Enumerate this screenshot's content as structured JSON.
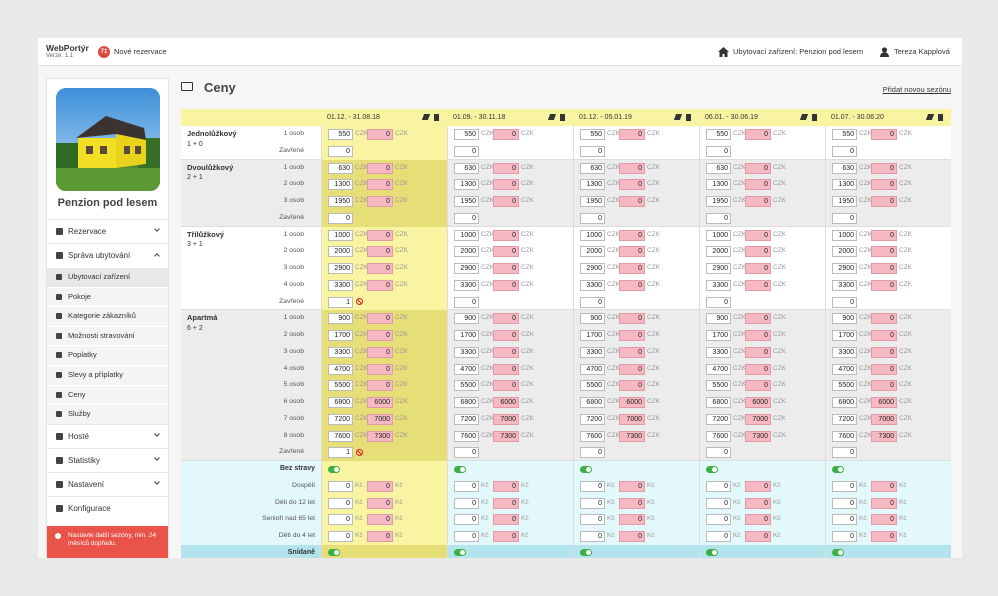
{
  "header": {
    "app_name": "WebPortýr",
    "version": "Verze: 1.1",
    "badge": "71",
    "new_reservations": "Nové rezervace",
    "facility": "Ubytovací zařízení: Penzion pod lesem",
    "user": "Tereza Kapplová"
  },
  "sidebar": {
    "property_name": "Penzion pod lesem",
    "menu": [
      {
        "label": "Rezervace",
        "chevron": "down"
      },
      {
        "label": "Správa ubytování",
        "chevron": "up",
        "items": [
          "Ubytovací zařízení",
          "Pokoje",
          "Kategorie zákazníků",
          "Možnosti stravování",
          "Poplatky",
          "Slevy a příplatky",
          "Ceny",
          "Služby"
        ],
        "active_item": 0
      },
      {
        "label": "Hosté",
        "chevron": "down"
      },
      {
        "label": "Statistiky",
        "chevron": "down"
      },
      {
        "label": "Nastavení",
        "chevron": "down"
      },
      {
        "label": "Konfigurace"
      }
    ],
    "alert": "Nastavte další sezóny, min. 24 měsíců dopředu."
  },
  "page": {
    "title": "Ceny",
    "add_season": "Přidat novou sezónu"
  },
  "table": {
    "currency": "CZK",
    "meal_currency": "Kč",
    "closed_label": "Zavřené",
    "highlighted_season": 0,
    "room_types": [
      {
        "name": "Jednolůžkový",
        "capacity": "1 + 0",
        "rows": [
          "1 osob"
        ]
      },
      {
        "name": "Dvoulůžkový",
        "capacity": "2 + 1",
        "rows": [
          "1 osob",
          "2 osob",
          "3 osob"
        ]
      },
      {
        "name": "Třílůžkový",
        "capacity": "3 + 1",
        "rows": [
          "1 osob",
          "2 osob",
          "3 osob",
          "4 osob"
        ]
      },
      {
        "name": "Apartmá",
        "capacity": "6 + 2",
        "rows": [
          "1 osob",
          "2 osob",
          "3 osob",
          "4 osob",
          "5 osob",
          "6 osob",
          "7 osob",
          "8 osob"
        ]
      }
    ],
    "meal_plans": [
      {
        "name": "Bez stravy",
        "rows": [
          "Dospělí",
          "Děti do 12 let",
          "Senioři nad 65 let",
          "Děti do 4 let"
        ]
      },
      {
        "name": "Snídaně",
        "rows": []
      }
    ],
    "seasons": [
      {
        "label": "01.12. - 31.08.18",
        "rooms": [
          {
            "prices": [
              [
                550,
                0
              ]
            ],
            "closed": 0
          },
          {
            "prices": [
              [
                630,
                0
              ],
              [
                1300,
                0
              ],
              [
                1950,
                0
              ]
            ],
            "closed": 0
          },
          {
            "prices": [
              [
                1000,
                0
              ],
              [
                2000,
                0
              ],
              [
                2900,
                0
              ],
              [
                3300,
                0
              ]
            ],
            "closed": 1
          },
          {
            "prices": [
              [
                900,
                0
              ],
              [
                1700,
                0
              ],
              [
                3300,
                0
              ],
              [
                4700,
                0
              ],
              [
                5500,
                0
              ],
              [
                6800,
                6000
              ],
              [
                7200,
                7000
              ],
              [
                7600,
                7300
              ]
            ],
            "closed": 1
          }
        ],
        "meals": [
          {
            "enabled": true,
            "prices": [
              [
                0,
                0
              ],
              [
                0,
                0
              ],
              [
                0,
                0
              ],
              [
                0,
                0
              ]
            ]
          },
          {
            "enabled": true,
            "prices": []
          }
        ]
      },
      {
        "label": "01.09. - 30.11.18",
        "rooms": [
          {
            "prices": [
              [
                550,
                0
              ]
            ],
            "closed": 0
          },
          {
            "prices": [
              [
                630,
                0
              ],
              [
                1300,
                0
              ],
              [
                1950,
                0
              ]
            ],
            "closed": 0
          },
          {
            "prices": [
              [
                1000,
                0
              ],
              [
                2000,
                0
              ],
              [
                2900,
                0
              ],
              [
                3300,
                0
              ]
            ],
            "closed": 0
          },
          {
            "prices": [
              [
                900,
                0
              ],
              [
                1700,
                0
              ],
              [
                3300,
                0
              ],
              [
                4700,
                0
              ],
              [
                5500,
                0
              ],
              [
                6800,
                6000
              ],
              [
                7200,
                7000
              ],
              [
                7600,
                7300
              ]
            ],
            "closed": 0
          }
        ],
        "meals": [
          {
            "enabled": true,
            "prices": [
              [
                0,
                0
              ],
              [
                0,
                0
              ],
              [
                0,
                0
              ],
              [
                0,
                0
              ]
            ]
          },
          {
            "enabled": true,
            "prices": []
          }
        ]
      },
      {
        "label": "01.12. - 05.01.19",
        "rooms": [
          {
            "prices": [
              [
                550,
                0
              ]
            ],
            "closed": 0
          },
          {
            "prices": [
              [
                630,
                0
              ],
              [
                1300,
                0
              ],
              [
                1950,
                0
              ]
            ],
            "closed": 0
          },
          {
            "prices": [
              [
                1000,
                0
              ],
              [
                2000,
                0
              ],
              [
                2900,
                0
              ],
              [
                3300,
                0
              ]
            ],
            "closed": 0
          },
          {
            "prices": [
              [
                900,
                0
              ],
              [
                1700,
                0
              ],
              [
                3300,
                0
              ],
              [
                4700,
                0
              ],
              [
                5500,
                0
              ],
              [
                6800,
                6000
              ],
              [
                7200,
                7000
              ],
              [
                7600,
                7300
              ]
            ],
            "closed": 0
          }
        ],
        "meals": [
          {
            "enabled": true,
            "prices": [
              [
                0,
                0
              ],
              [
                0,
                0
              ],
              [
                0,
                0
              ],
              [
                0,
                0
              ]
            ]
          },
          {
            "enabled": true,
            "prices": []
          }
        ]
      },
      {
        "label": "06.01. - 30.06.19",
        "rooms": [
          {
            "prices": [
              [
                550,
                0
              ]
            ],
            "closed": 0
          },
          {
            "prices": [
              [
                630,
                0
              ],
              [
                1300,
                0
              ],
              [
                1950,
                0
              ]
            ],
            "closed": 0
          },
          {
            "prices": [
              [
                1000,
                0
              ],
              [
                2000,
                0
              ],
              [
                2900,
                0
              ],
              [
                3300,
                0
              ]
            ],
            "closed": 0
          },
          {
            "prices": [
              [
                900,
                0
              ],
              [
                1700,
                0
              ],
              [
                3300,
                0
              ],
              [
                4700,
                0
              ],
              [
                5500,
                0
              ],
              [
                6800,
                6000
              ],
              [
                7200,
                7000
              ],
              [
                7600,
                7300
              ]
            ],
            "closed": 0
          }
        ],
        "meals": [
          {
            "enabled": true,
            "prices": [
              [
                0,
                0
              ],
              [
                0,
                0
              ],
              [
                0,
                0
              ],
              [
                0,
                0
              ]
            ]
          },
          {
            "enabled": true,
            "prices": []
          }
        ]
      },
      {
        "label": "01.07. - 30.06.20",
        "rooms": [
          {
            "prices": [
              [
                550,
                0
              ]
            ],
            "closed": 0
          },
          {
            "prices": [
              [
                630,
                0
              ],
              [
                1300,
                0
              ],
              [
                1950,
                0
              ]
            ],
            "closed": 0
          },
          {
            "prices": [
              [
                1000,
                0
              ],
              [
                2000,
                0
              ],
              [
                2900,
                0
              ],
              [
                3300,
                0
              ]
            ],
            "closed": 0
          },
          {
            "prices": [
              [
                900,
                0
              ],
              [
                1700,
                0
              ],
              [
                3300,
                0
              ],
              [
                4700,
                0
              ],
              [
                5500,
                0
              ],
              [
                6800,
                6000
              ],
              [
                7200,
                7000
              ],
              [
                7600,
                7300
              ]
            ],
            "closed": 0
          }
        ],
        "meals": [
          {
            "enabled": true,
            "prices": [
              [
                0,
                0
              ],
              [
                0,
                0
              ],
              [
                0,
                0
              ],
              [
                0,
                0
              ]
            ]
          },
          {
            "enabled": true,
            "prices": []
          }
        ]
      }
    ]
  }
}
